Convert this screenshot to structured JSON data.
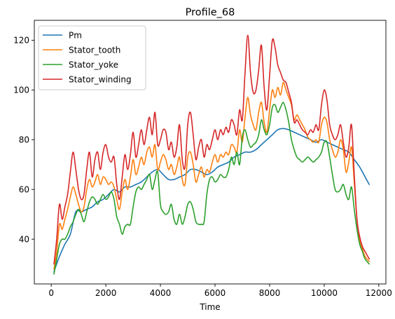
{
  "chart_data": {
    "type": "line",
    "title": "Profile_68",
    "xlabel": "Time",
    "ylabel": "",
    "xlim": [
      -620,
      12260
    ],
    "ylim": [
      22,
      128
    ],
    "xticks": [
      0,
      2000,
      4000,
      6000,
      8000,
      10000,
      12000
    ],
    "yticks": [
      40,
      60,
      80,
      100,
      120
    ],
    "legend_position": "top-left",
    "grid": false,
    "series": [
      {
        "name": "Pm",
        "color": "#1f77b4",
        "x": [
          100,
          300,
          500,
          700,
          900,
          1100,
          1300,
          1500,
          1700,
          1900,
          2100,
          2300,
          2500,
          2700,
          2900,
          3100,
          3300,
          3500,
          3700,
          3900,
          4100,
          4300,
          4500,
          4700,
          4900,
          5100,
          5300,
          5500,
          5700,
          5900,
          6100,
          6300,
          6500,
          6700,
          6900,
          7100,
          7300,
          7500,
          7700,
          7900,
          8100,
          8300,
          8500,
          8700,
          8900,
          9100,
          9300,
          9500,
          9700,
          9900,
          10100,
          10300,
          10500,
          10700,
          10900,
          11100,
          11300,
          11500,
          11650
        ],
        "values": [
          27,
          33,
          38,
          42,
          51,
          51,
          52,
          53,
          55,
          56,
          58,
          60,
          59,
          61,
          61,
          62,
          63,
          65,
          67,
          68,
          66,
          64,
          64,
          65,
          66,
          68,
          68,
          67,
          66,
          67,
          69,
          70,
          71,
          73,
          74,
          75,
          75,
          76,
          78,
          80,
          82,
          84,
          84.5,
          84,
          83,
          82,
          81,
          80,
          79,
          80,
          79,
          78,
          77,
          76,
          75,
          72,
          69,
          65,
          62
        ]
      },
      {
        "name": "Stator_tooth",
        "color": "#ff7f0e",
        "x": [
          100,
          200,
          300,
          400,
          500,
          600,
          700,
          800,
          900,
          1000,
          1100,
          1200,
          1300,
          1400,
          1500,
          1600,
          1700,
          1800,
          1900,
          2000,
          2100,
          2200,
          2300,
          2400,
          2500,
          2600,
          2700,
          2800,
          2900,
          3000,
          3100,
          3200,
          3300,
          3400,
          3500,
          3600,
          3700,
          3800,
          3900,
          4000,
          4100,
          4200,
          4300,
          4400,
          4500,
          4600,
          4700,
          4800,
          4900,
          5000,
          5100,
          5200,
          5300,
          5400,
          5500,
          5600,
          5700,
          5800,
          5900,
          6000,
          6100,
          6200,
          6300,
          6400,
          6500,
          6600,
          6700,
          6800,
          6900,
          7000,
          7100,
          7200,
          7300,
          7400,
          7500,
          7600,
          7700,
          7800,
          7900,
          8000,
          8100,
          8200,
          8300,
          8400,
          8500,
          8600,
          8700,
          8800,
          8900,
          9000,
          9100,
          9200,
          9300,
          9400,
          9500,
          9600,
          9700,
          9800,
          9900,
          10000,
          10100,
          10200,
          10300,
          10400,
          10500,
          10600,
          10700,
          10800,
          10900,
          11000,
          11100,
          11200,
          11300,
          11400,
          11500,
          11650
        ],
        "values": [
          28,
          35,
          46,
          44,
          48,
          52,
          57,
          61,
          58,
          54,
          51,
          53,
          60,
          64,
          61,
          63,
          66,
          62,
          65,
          64,
          62,
          63,
          61,
          56,
          52,
          59,
          64,
          60,
          65,
          72,
          66,
          69,
          73,
          70,
          75,
          77,
          73,
          78,
          68,
          71,
          74,
          72,
          68,
          70,
          66,
          69,
          73,
          64,
          62,
          73,
          75,
          70,
          63,
          66,
          69,
          65,
          68,
          67,
          71,
          74,
          71,
          74,
          73,
          75,
          74,
          78,
          77,
          75,
          84,
          79,
          89,
          97,
          90,
          86,
          84,
          91,
          95,
          87,
          83,
          92,
          100,
          97,
          101,
          98,
          103,
          100,
          97,
          94,
          88,
          90,
          88,
          86,
          84,
          81,
          80,
          79,
          80,
          79,
          86,
          89,
          87,
          80,
          76,
          73,
          75,
          80,
          76,
          67,
          71,
          77,
          63,
          48,
          40,
          36,
          33,
          31
        ]
      },
      {
        "name": "Stator_yoke",
        "color": "#2ca02c",
        "x": [
          100,
          200,
          300,
          400,
          500,
          600,
          700,
          800,
          900,
          1000,
          1100,
          1200,
          1300,
          1400,
          1500,
          1600,
          1700,
          1800,
          1900,
          2000,
          2100,
          2200,
          2300,
          2400,
          2500,
          2600,
          2700,
          2800,
          2900,
          3000,
          3100,
          3200,
          3300,
          3400,
          3500,
          3600,
          3700,
          3800,
          3900,
          4000,
          4100,
          4200,
          4300,
          4400,
          4500,
          4600,
          4700,
          4800,
          4900,
          5000,
          5100,
          5200,
          5300,
          5400,
          5500,
          5600,
          5700,
          5800,
          5900,
          6000,
          6100,
          6200,
          6300,
          6400,
          6500,
          6600,
          6700,
          6800,
          6900,
          7000,
          7100,
          7200,
          7300,
          7400,
          7500,
          7600,
          7700,
          7800,
          7900,
          8000,
          8100,
          8200,
          8300,
          8400,
          8500,
          8600,
          8700,
          8800,
          8900,
          9000,
          9100,
          9200,
          9300,
          9400,
          9500,
          9600,
          9700,
          9800,
          9900,
          10000,
          10100,
          10200,
          10300,
          10400,
          10500,
          10600,
          10700,
          10800,
          10900,
          11000,
          11100,
          11200,
          11300,
          11400,
          11500,
          11650
        ],
        "values": [
          26,
          32,
          38,
          40,
          40,
          42,
          45,
          47,
          50,
          52,
          50,
          47,
          51,
          55,
          57,
          56,
          54,
          56,
          58,
          56,
          57,
          59,
          56,
          49,
          46,
          42,
          45,
          46,
          46,
          53,
          59,
          61,
          60,
          62,
          64,
          66,
          60,
          64,
          67,
          54,
          51,
          50,
          51,
          54,
          48,
          46,
          50,
          46,
          49,
          54,
          55,
          52,
          47,
          46,
          46,
          47,
          58,
          64,
          65,
          63,
          64,
          66,
          65,
          65,
          68,
          73,
          70,
          75,
          70,
          81,
          84,
          80,
          77,
          78,
          79,
          82,
          88,
          84,
          82,
          86,
          93,
          94,
          91,
          93,
          95,
          92,
          87,
          80,
          76,
          73,
          72,
          71,
          72,
          73,
          72,
          71,
          72,
          73,
          75,
          79,
          79,
          73,
          66,
          60,
          59,
          60,
          62,
          58,
          56,
          61,
          52,
          44,
          38,
          35,
          32,
          30
        ]
      },
      {
        "name": "Stator_winding",
        "color": "#d62728",
        "x": [
          100,
          200,
          300,
          400,
          500,
          600,
          700,
          800,
          900,
          1000,
          1100,
          1200,
          1300,
          1400,
          1500,
          1600,
          1700,
          1800,
          1900,
          2000,
          2100,
          2200,
          2300,
          2400,
          2500,
          2600,
          2700,
          2800,
          2900,
          3000,
          3100,
          3200,
          3300,
          3400,
          3500,
          3600,
          3700,
          3800,
          3900,
          4000,
          4100,
          4200,
          4300,
          4400,
          4500,
          4600,
          4700,
          4800,
          4900,
          5000,
          5100,
          5200,
          5300,
          5400,
          5500,
          5600,
          5700,
          5800,
          5900,
          6000,
          6100,
          6200,
          6300,
          6400,
          6500,
          6600,
          6700,
          6800,
          6900,
          7000,
          7100,
          7200,
          7300,
          7400,
          7500,
          7600,
          7700,
          7800,
          7900,
          8000,
          8100,
          8200,
          8300,
          8400,
          8500,
          8600,
          8700,
          8800,
          8900,
          9000,
          9100,
          9200,
          9300,
          9400,
          9500,
          9600,
          9700,
          9800,
          9900,
          10000,
          10100,
          10200,
          10300,
          10400,
          10500,
          10600,
          10700,
          10800,
          10900,
          11000,
          11100,
          11200,
          11300,
          11400,
          11500,
          11650
        ],
        "values": [
          30,
          40,
          54,
          48,
          53,
          58,
          67,
          75,
          68,
          60,
          56,
          58,
          68,
          75,
          65,
          72,
          75,
          68,
          75,
          78,
          73,
          71,
          73,
          62,
          56,
          65,
          74,
          68,
          74,
          83,
          73,
          78,
          84,
          78,
          84,
          89,
          82,
          91,
          78,
          80,
          84,
          83,
          76,
          79,
          73,
          77,
          86,
          72,
          69,
          86,
          91,
          82,
          72,
          77,
          80,
          73,
          78,
          76,
          80,
          84,
          80,
          84,
          82,
          85,
          83,
          88,
          86,
          82,
          92,
          88,
          107,
          122,
          107,
          99,
          100,
          108,
          118,
          101,
          92,
          106,
          120,
          117,
          110,
          107,
          104,
          103,
          99,
          95,
          87,
          88,
          86,
          84,
          83,
          82,
          84,
          83,
          86,
          84,
          94,
          100,
          96,
          86,
          82,
          80,
          82,
          86,
          79,
          73,
          77,
          86,
          66,
          48,
          41,
          37,
          35,
          32
        ]
      }
    ]
  }
}
